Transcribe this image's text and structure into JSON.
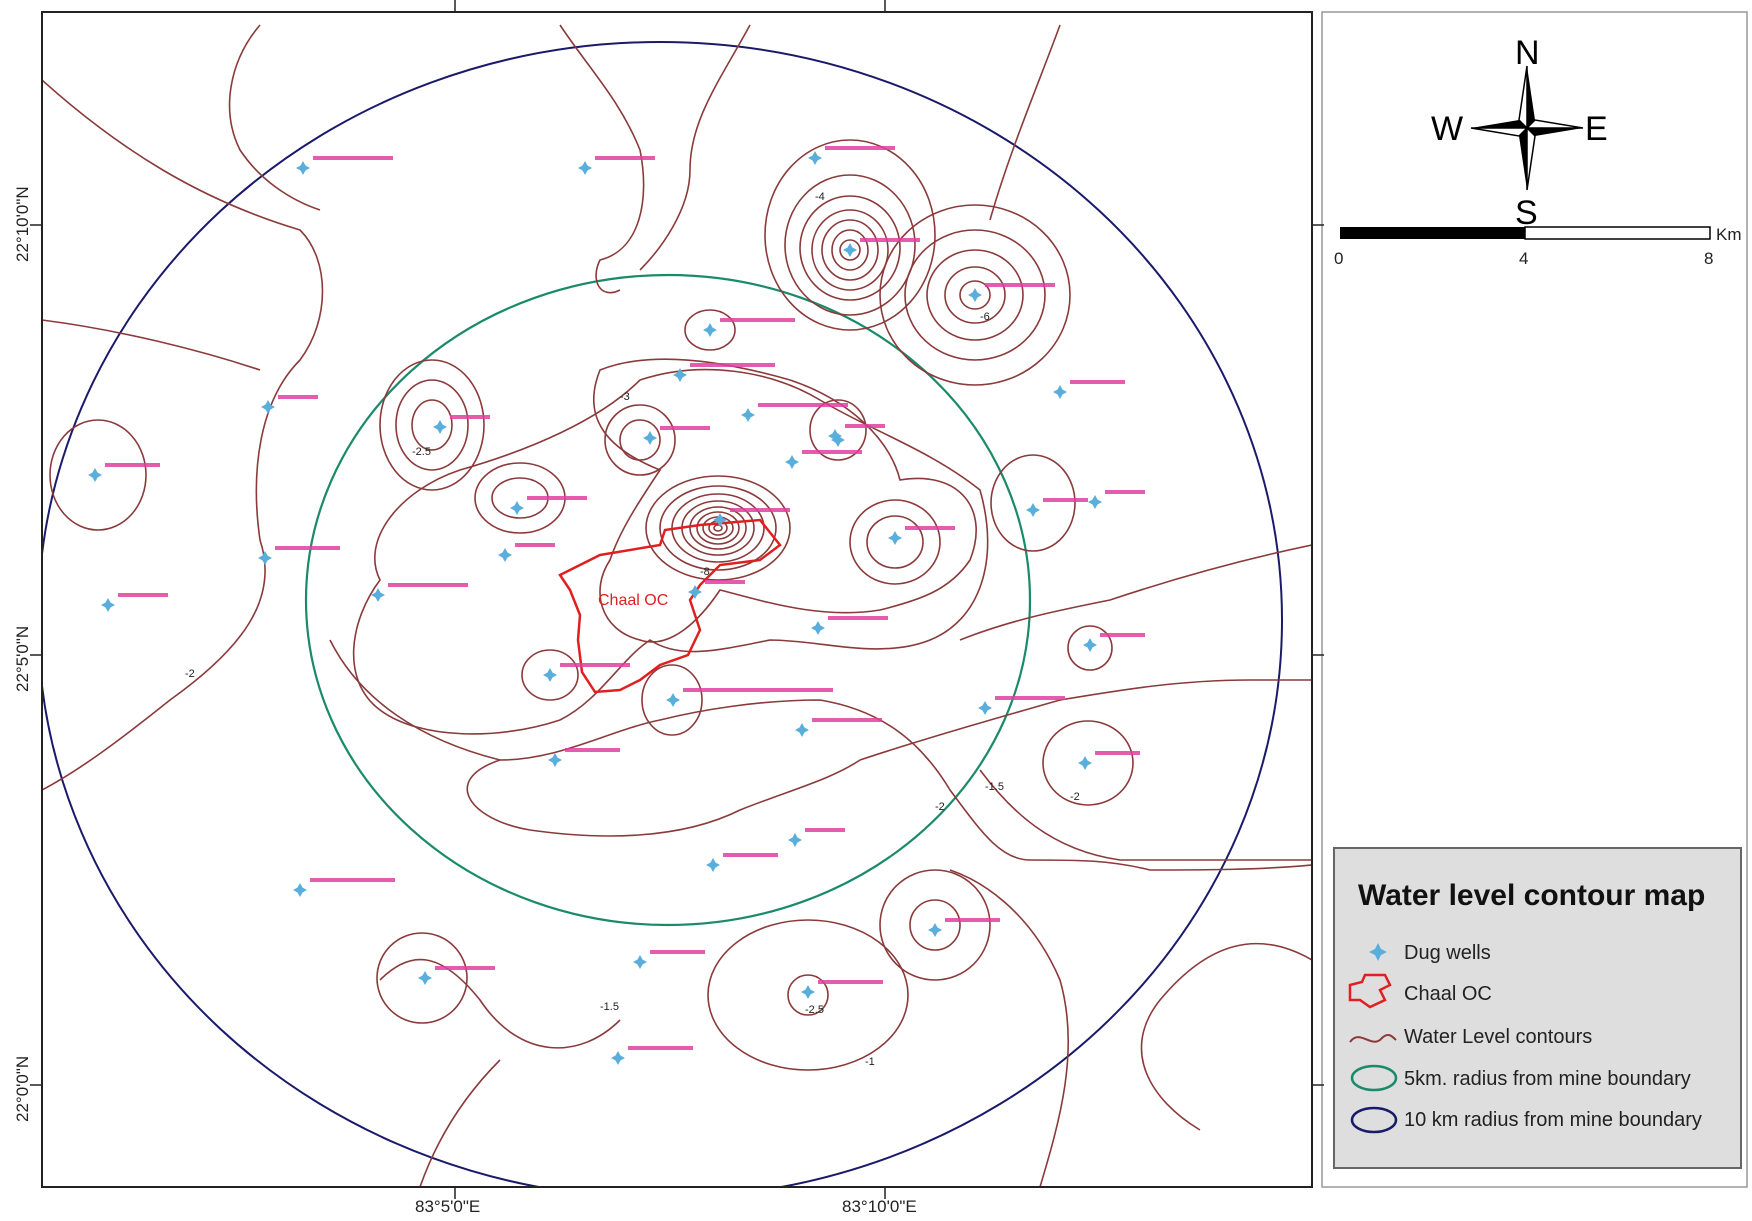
{
  "legend": {
    "title": "Water level contour map",
    "items": [
      {
        "label": "Dug wells",
        "symbol": "dug-well"
      },
      {
        "label": "Chaal OC",
        "symbol": "mine-boundary"
      },
      {
        "label": "Water Level contours",
        "symbol": "contour-line"
      },
      {
        "label": "5km. radius from mine boundary",
        "symbol": "green-circle"
      },
      {
        "label": "10 km radius from mine boundary",
        "symbol": "blue-circle"
      }
    ]
  },
  "compass": {
    "n": "N",
    "s": "S",
    "e": "E",
    "w": "W"
  },
  "scale_bar": {
    "ticks": [
      "0",
      "4",
      "8"
    ],
    "unit": "Km"
  },
  "axes": {
    "longitude": [
      "83°5'0\"E",
      "83°10'0\"E"
    ],
    "latitude": [
      "22°10'0\"N",
      "22°5'0\"N",
      "22°0'0\"N"
    ]
  },
  "mine": {
    "label": "Chaal OC"
  },
  "colors": {
    "contour": "#8a3a3a",
    "mine": "#e02020",
    "inner_circle": "#1a8a6a",
    "outer_circle": "#1a1a6a",
    "well": "#5aaedc",
    "well_label": "#e040a0",
    "legend_bg": "#dedede"
  },
  "contour_labels": [
    "-2",
    "-2.5",
    "-1.5",
    "-3",
    "-4",
    "-6",
    "-8",
    "-1"
  ]
}
